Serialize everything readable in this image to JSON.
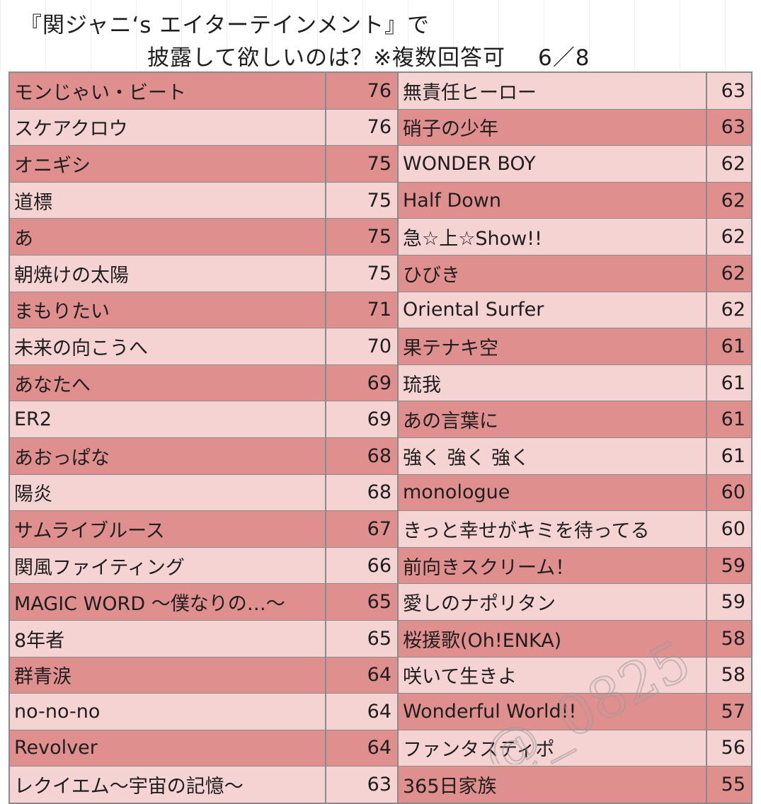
{
  "title": {
    "line1": "『関ジャニ‘s エイターテインメント』で",
    "line2": "披露して欲しいのは？※複数回答可",
    "page": "6／8"
  },
  "colors": {
    "dark_row": "#e08f8f",
    "light_row": "#f6d3d3",
    "border": "#8a8a8a"
  },
  "left_rows": [
    {
      "name": "モンじゃい・ビート",
      "value": "76",
      "shade": "dark"
    },
    {
      "name": "スケアクロウ",
      "value": "76",
      "shade": "light"
    },
    {
      "name": "オニギシ",
      "value": "75",
      "shade": "dark"
    },
    {
      "name": "道標",
      "value": "75",
      "shade": "light"
    },
    {
      "name": "あ",
      "value": "75",
      "shade": "dark"
    },
    {
      "name": "朝焼けの太陽",
      "value": "75",
      "shade": "light"
    },
    {
      "name": "まもりたい",
      "value": "71",
      "shade": "dark"
    },
    {
      "name": "未来の向こうへ",
      "value": "70",
      "shade": "light"
    },
    {
      "name": "あなたへ",
      "value": "69",
      "shade": "dark"
    },
    {
      "name": "ER2",
      "value": "69",
      "shade": "light"
    },
    {
      "name": "あおっぱな",
      "value": "68",
      "shade": "dark"
    },
    {
      "name": "陽炎",
      "value": "68",
      "shade": "light"
    },
    {
      "name": "サムライブルース",
      "value": "67",
      "shade": "dark"
    },
    {
      "name": "関風ファイティング",
      "value": "66",
      "shade": "light"
    },
    {
      "name": "MAGIC WORD ～僕なりの…～",
      "value": "65",
      "shade": "dark"
    },
    {
      "name": "8年者",
      "value": "65",
      "shade": "light"
    },
    {
      "name": "群青涙",
      "value": "64",
      "shade": "dark"
    },
    {
      "name": "no-no-no",
      "value": "64",
      "shade": "light"
    },
    {
      "name": "Revolver",
      "value": "64",
      "shade": "dark"
    },
    {
      "name": "レクイエム～宇宙の記憶～",
      "value": "63",
      "shade": "light"
    }
  ],
  "right_rows": [
    {
      "name": "無責任ヒーロー",
      "value": "63",
      "shade": "light"
    },
    {
      "name": "硝子の少年",
      "value": "63",
      "shade": "dark"
    },
    {
      "name": "WONDER BOY",
      "value": "62",
      "shade": "light"
    },
    {
      "name": "Half Down",
      "value": "62",
      "shade": "dark"
    },
    {
      "name": "急☆上☆Show!!",
      "value": "62",
      "shade": "light"
    },
    {
      "name": "ひびき",
      "value": "62",
      "shade": "dark"
    },
    {
      "name": "Oriental Surfer",
      "value": "62",
      "shade": "light"
    },
    {
      "name": "果テナキ空",
      "value": "61",
      "shade": "dark"
    },
    {
      "name": "琉我",
      "value": "61",
      "shade": "light"
    },
    {
      "name": "あの言葉に",
      "value": "61",
      "shade": "dark"
    },
    {
      "name": "強く 強く 強く",
      "value": "61",
      "shade": "light"
    },
    {
      "name": "monologue",
      "value": "60",
      "shade": "dark"
    },
    {
      "name": "きっと幸せがキミを待ってる",
      "value": "60",
      "shade": "light"
    },
    {
      "name": "前向きスクリーム！",
      "value": "59",
      "shade": "dark"
    },
    {
      "name": "愛しのナポリタン",
      "value": "59",
      "shade": "light"
    },
    {
      "name": "桜援歌(Oh!ENKA)",
      "value": "58",
      "shade": "dark"
    },
    {
      "name": "咲いて生きよ",
      "value": "58",
      "shade": "light"
    },
    {
      "name": "Wonderful World!!",
      "value": "57",
      "shade": "dark"
    },
    {
      "name": "ファンタスティポ",
      "value": "56",
      "shade": "light"
    },
    {
      "name": "365日家族",
      "value": "55",
      "shade": "dark"
    }
  ],
  "watermark": "@_0825"
}
